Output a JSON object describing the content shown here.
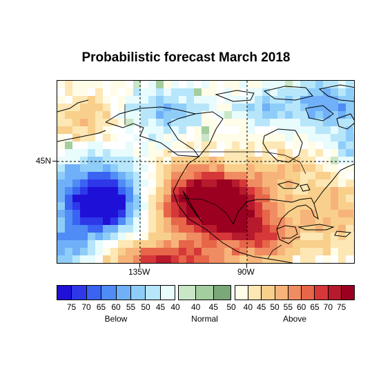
{
  "title": "Probabilistic forecast March 2018",
  "map": {
    "lat_labels": [
      "45N"
    ],
    "lon_labels": [
      "135W",
      "90W"
    ],
    "gridlines": "dashed",
    "colors": {
      "below": [
        "#1f10d8",
        "#2e38e8",
        "#3a63f2",
        "#4f8cf6",
        "#6fb0f8",
        "#8fcdf9",
        "#b7e6fb",
        "#e8fbfd"
      ],
      "normal": [
        "#c9e6c6",
        "#a4cda0",
        "#7aa878"
      ],
      "above": [
        "#fffce8",
        "#fde7b4",
        "#f9cf8c",
        "#f6b37a",
        "#f08c61",
        "#e76548",
        "#d6383a",
        "#b61a2c",
        "#9b0020"
      ]
    }
  },
  "legend": {
    "below": {
      "name": "Below",
      "ticks": [
        "75",
        "70",
        "65",
        "60",
        "55",
        "50",
        "45",
        "40"
      ]
    },
    "normal": {
      "name": "Normal",
      "ticks": [
        "40",
        "45",
        "50"
      ]
    },
    "above": {
      "name": "Above",
      "ticks": [
        "40",
        "45",
        "50",
        "55",
        "60",
        "65",
        "70",
        "75"
      ]
    }
  }
}
